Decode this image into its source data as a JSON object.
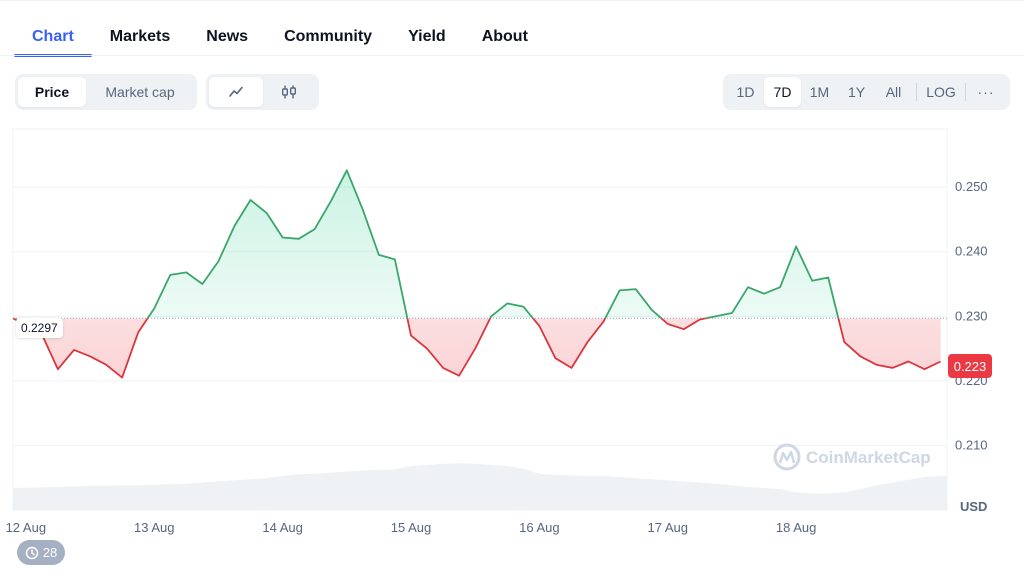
{
  "tabs": [
    {
      "label": "Chart",
      "active": true
    },
    {
      "label": "Markets"
    },
    {
      "label": "News"
    },
    {
      "label": "Community"
    },
    {
      "label": "Yield"
    },
    {
      "label": "About"
    }
  ],
  "toolbar": {
    "type_options": [
      "Price",
      "Market cap"
    ],
    "type_selected": "Price",
    "style_options": [
      {
        "name": "line-chart-icon",
        "selected": true
      },
      {
        "name": "candlestick-icon",
        "selected": false
      }
    ],
    "ranges": [
      "1D",
      "7D",
      "1M",
      "1Y",
      "All"
    ],
    "range_selected": "7D",
    "log_label": "LOG",
    "more_label": "···"
  },
  "reference_price": "0.2297",
  "current_price": "0.223",
  "currency": "USD",
  "watermark": "CoinMarketCap",
  "history_count": "28",
  "colors": {
    "accent": "#3861fb",
    "up": "#16c784",
    "down": "#ea3943",
    "up_line": "#3aa66b",
    "down_line": "#d9363e"
  },
  "chart_data": {
    "type": "line",
    "series": [
      {
        "x": [
          "2024-08-12T00:00",
          "2024-08-12T03:00",
          "2024-08-12T06:00",
          "2024-08-12T09:00",
          "2024-08-12T12:00",
          "2024-08-12T15:00",
          "2024-08-12T18:00",
          "2024-08-12T21:00",
          "2024-08-13T00:00",
          "2024-08-13T03:00",
          "2024-08-13T06:00",
          "2024-08-13T09:00",
          "2024-08-13T12:00",
          "2024-08-13T15:00",
          "2024-08-13T18:00",
          "2024-08-13T21:00",
          "2024-08-14T00:00",
          "2024-08-14T03:00",
          "2024-08-14T06:00",
          "2024-08-14T09:00",
          "2024-08-14T12:00",
          "2024-08-14T15:00",
          "2024-08-14T18:00",
          "2024-08-14T21:00",
          "2024-08-15T00:00",
          "2024-08-15T03:00",
          "2024-08-15T06:00",
          "2024-08-15T09:00",
          "2024-08-15T12:00",
          "2024-08-15T15:00",
          "2024-08-15T18:00",
          "2024-08-15T21:00",
          "2024-08-16T00:00",
          "2024-08-16T03:00",
          "2024-08-16T06:00",
          "2024-08-16T09:00",
          "2024-08-16T12:00",
          "2024-08-16T15:00",
          "2024-08-16T18:00",
          "2024-08-16T21:00",
          "2024-08-17T00:00",
          "2024-08-17T03:00",
          "2024-08-17T06:00",
          "2024-08-17T09:00",
          "2024-08-17T12:00",
          "2024-08-17T15:00",
          "2024-08-17T18:00",
          "2024-08-17T21:00",
          "2024-08-18T00:00",
          "2024-08-18T03:00",
          "2024-08-18T06:00",
          "2024-08-18T09:00",
          "2024-08-18T12:00",
          "2024-08-18T15:00",
          "2024-08-18T18:00",
          "2024-08-18T21:00",
          "2024-08-19T00:00",
          "2024-08-19T03:00"
        ],
        "values": [
          0.2297,
          0.2272,
          0.2218,
          0.2248,
          0.2238,
          0.2225,
          0.2205,
          0.2275,
          0.2312,
          0.2364,
          0.2368,
          0.235,
          0.2385,
          0.244,
          0.248,
          0.246,
          0.2422,
          0.242,
          0.2435,
          0.2478,
          0.2526,
          0.2465,
          0.2395,
          0.2388,
          0.227,
          0.225,
          0.222,
          0.2208,
          0.225,
          0.23,
          0.232,
          0.2315,
          0.2285,
          0.2235,
          0.222,
          0.226,
          0.2292,
          0.234,
          0.2342,
          0.231,
          0.2288,
          0.228,
          0.2295,
          0.23,
          0.2305,
          0.2345,
          0.2335,
          0.2345,
          0.2408,
          0.2355,
          0.236,
          0.226,
          0.2238,
          0.2225,
          0.222,
          0.223,
          0.2218,
          0.223
        ]
      }
    ],
    "volume": [
      0.4,
      0.41,
      0.42,
      0.43,
      0.44,
      0.44,
      0.45,
      0.45,
      0.46,
      0.47,
      0.48,
      0.5,
      0.52,
      0.54,
      0.56,
      0.58,
      0.62,
      0.65,
      0.66,
      0.68,
      0.7,
      0.72,
      0.73,
      0.74,
      0.8,
      0.82,
      0.84,
      0.85,
      0.84,
      0.82,
      0.8,
      0.75,
      0.66,
      0.64,
      0.63,
      0.62,
      0.62,
      0.6,
      0.58,
      0.56,
      0.54,
      0.52,
      0.5,
      0.48,
      0.45,
      0.42,
      0.4,
      0.38,
      0.32,
      0.3,
      0.3,
      0.32,
      0.38,
      0.45,
      0.5,
      0.55,
      0.6,
      0.62
    ],
    "baseline": 0.2297,
    "x_tick_labels": [
      "12 Aug",
      "13 Aug",
      "14 Aug",
      "15 Aug",
      "16 Aug",
      "17 Aug",
      "18 Aug"
    ],
    "y_ticks": [
      "0.210",
      "0.220",
      "0.230",
      "0.240",
      "0.250"
    ],
    "y_tick_values": [
      0.21,
      0.22,
      0.23,
      0.24,
      0.25
    ],
    "ylim": [
      0.2,
      0.259
    ],
    "y_unit": "USD",
    "grid": true
  }
}
